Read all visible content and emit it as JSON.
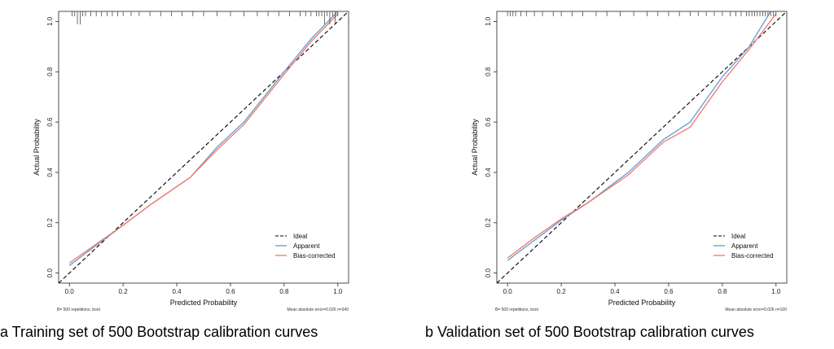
{
  "chart_data": [
    {
      "type": "line",
      "title": "",
      "xlabel": "Predicted Probability",
      "ylabel": "Actual Probability",
      "xlim": [
        -0.04,
        1.04
      ],
      "ylim": [
        -0.04,
        1.04
      ],
      "xticks": [
        0.0,
        0.2,
        0.4,
        0.6,
        0.8,
        1.0
      ],
      "yticks": [
        0.0,
        0.2,
        0.4,
        0.6,
        0.8,
        1.0
      ],
      "tick_labels": [
        "0.0",
        "0.2",
        "0.4",
        "0.6",
        "0.8",
        "1.0"
      ],
      "grid": false,
      "legend_position": "bottom-right",
      "series": [
        {
          "name": "Ideal",
          "color": "#000000",
          "dash": true,
          "x": [
            -0.04,
            1.04
          ],
          "y": [
            -0.04,
            1.04
          ]
        },
        {
          "name": "Apparent",
          "color": "#6e9fd6",
          "x": [
            0.0,
            0.1,
            0.2,
            0.3,
            0.45,
            0.55,
            0.65,
            0.8,
            0.9,
            1.0
          ],
          "y": [
            0.03,
            0.11,
            0.19,
            0.27,
            0.38,
            0.5,
            0.6,
            0.8,
            0.93,
            1.04
          ]
        },
        {
          "name": "Bias-corrected",
          "color": "#f08070",
          "x": [
            0.0,
            0.1,
            0.2,
            0.3,
            0.45,
            0.55,
            0.65,
            0.8,
            0.9,
            1.0
          ],
          "y": [
            0.04,
            0.115,
            0.19,
            0.27,
            0.38,
            0.49,
            0.59,
            0.79,
            0.92,
            1.03
          ]
        }
      ],
      "rug": [
        0.01,
        0.02,
        0.03,
        0.04,
        0.05,
        0.06,
        0.08,
        0.1,
        0.12,
        0.14,
        0.16,
        0.18,
        0.2,
        0.23,
        0.26,
        0.3,
        0.34,
        0.38,
        0.42,
        0.46,
        0.5,
        0.55,
        0.6,
        0.65,
        0.7,
        0.74,
        0.78,
        0.82,
        0.86,
        0.88,
        0.9,
        0.92,
        0.93,
        0.94,
        0.95,
        0.96,
        0.97,
        0.98,
        0.99,
        1.0
      ],
      "rug_tall": [
        0.03,
        0.04,
        0.95,
        0.97,
        0.99
      ],
      "footnote_left": "B= 500 repetitions, boot",
      "footnote_right": "Mean absolute error=0.026 n=340",
      "caption": "a Training set of 500 Bootstrap calibration curves"
    },
    {
      "type": "line",
      "title": "",
      "xlabel": "Predicted Probability",
      "ylabel": "Actual Probability",
      "xlim": [
        -0.04,
        1.04
      ],
      "ylim": [
        -0.04,
        1.04
      ],
      "xticks": [
        0.0,
        0.2,
        0.4,
        0.6,
        0.8,
        1.0
      ],
      "yticks": [
        0.0,
        0.2,
        0.4,
        0.6,
        0.8,
        1.0
      ],
      "tick_labels": [
        "0.0",
        "0.2",
        "0.4",
        "0.6",
        "0.8",
        "1.0"
      ],
      "grid": false,
      "legend_position": "bottom-right",
      "series": [
        {
          "name": "Ideal",
          "color": "#000000",
          "dash": true,
          "x": [
            -0.04,
            1.04
          ],
          "y": [
            -0.04,
            1.04
          ]
        },
        {
          "name": "Apparent",
          "color": "#6e9fd6",
          "x": [
            0.0,
            0.1,
            0.2,
            0.3,
            0.45,
            0.58,
            0.68,
            0.8,
            0.9,
            0.98
          ],
          "y": [
            0.05,
            0.13,
            0.21,
            0.28,
            0.4,
            0.53,
            0.6,
            0.78,
            0.9,
            1.04
          ]
        },
        {
          "name": "Bias-corrected",
          "color": "#f08070",
          "x": [
            0.0,
            0.1,
            0.2,
            0.3,
            0.45,
            0.58,
            0.68,
            0.8,
            0.9,
            1.0
          ],
          "y": [
            0.06,
            0.14,
            0.215,
            0.28,
            0.39,
            0.52,
            0.58,
            0.76,
            0.89,
            1.03
          ]
        }
      ],
      "rug": [
        0.0,
        0.01,
        0.02,
        0.03,
        0.05,
        0.07,
        0.1,
        0.13,
        0.17,
        0.2,
        0.24,
        0.28,
        0.33,
        0.37,
        0.42,
        0.47,
        0.52,
        0.56,
        0.6,
        0.64,
        0.68,
        0.71,
        0.74,
        0.77,
        0.8,
        0.83,
        0.85,
        0.87,
        0.89,
        0.9,
        0.91,
        0.92,
        0.93,
        0.94,
        0.95,
        0.96,
        0.97,
        0.98,
        0.99,
        1.0
      ],
      "rug_tall": [],
      "footnote_left": "B= 500 repetitions, boot",
      "footnote_right": "Mean absolute error=0.026 n=100",
      "caption": "b Validation set of 500 Bootstrap calibration curves"
    }
  ]
}
